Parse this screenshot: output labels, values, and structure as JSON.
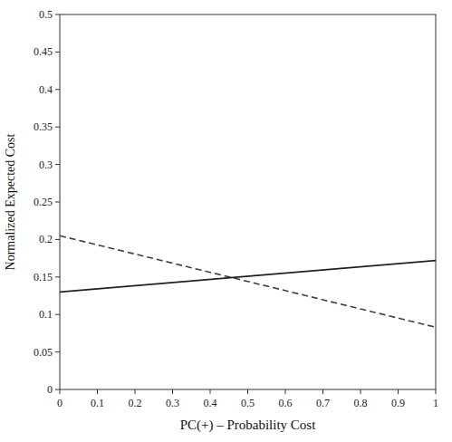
{
  "chart_data": {
    "type": "line",
    "xlabel": "PC(+) – Probability Cost",
    "ylabel": "Normalized Expected Cost",
    "x": [
      0,
      1
    ],
    "series": [
      {
        "color": "#404040",
        "line_style": "dashed",
        "values": [
          0.205,
          0.083
        ]
      },
      {
        "color": "#202020",
        "line_style": "solid",
        "values": [
          0.13,
          0.172
        ]
      }
    ],
    "xlim": [
      0,
      1
    ],
    "ylim": [
      0,
      0.5
    ],
    "xticks": [
      0,
      0.1,
      0.2,
      0.3,
      0.4,
      0.5,
      0.6,
      0.7,
      0.8,
      0.9,
      1
    ],
    "yticks": [
      0,
      0.05,
      0.1,
      0.15,
      0.2,
      0.25,
      0.3,
      0.35,
      0.4,
      0.45,
      0.5
    ],
    "grid": false
  }
}
